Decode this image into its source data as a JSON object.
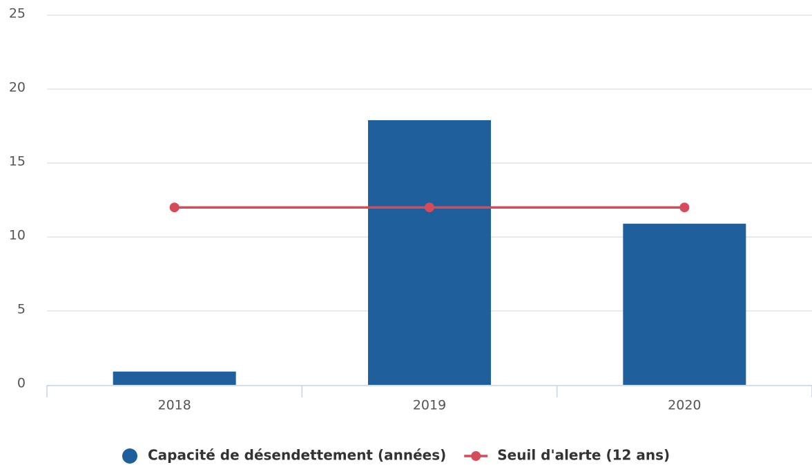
{
  "chart_data": {
    "type": "bar",
    "categories": [
      "2018",
      "2019",
      "2020"
    ],
    "series": [
      {
        "name": "Capacité de désendettement (années)",
        "type": "bar",
        "color": "#1f5f9b",
        "values": [
          0.9,
          17.9,
          10.9
        ]
      },
      {
        "name": "Seuil d'alerte (12 ans)",
        "type": "line",
        "color": "#d64b57",
        "values": [
          12,
          12,
          12
        ]
      }
    ],
    "ylim": [
      0,
      25
    ],
    "yticks": [
      0,
      5,
      10,
      15,
      20,
      25
    ],
    "grid": true,
    "legend": "bottom"
  }
}
